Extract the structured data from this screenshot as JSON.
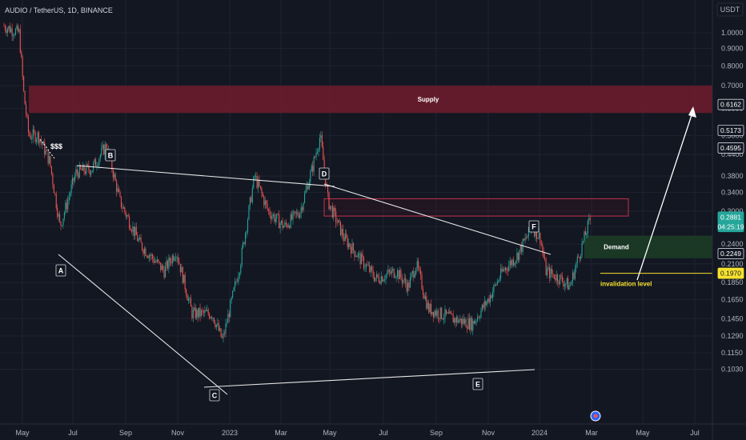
{
  "header": {
    "title": "AUDIO / TetherUS, 1D, BINANCE"
  },
  "currency": "USDT",
  "colors": {
    "background": "#131722",
    "grid": "#1f2330",
    "up": "#26a69a",
    "down": "#ef5350",
    "supply_fill": "#6b1c2b",
    "demand_fill": "#1b3a26",
    "box_stroke": "#c2334b",
    "invalidation": "#f5e12f",
    "price_tag": "#26a69a"
  },
  "chart_data": {
    "type": "candlestick",
    "x_labels": [
      "May",
      "Jul",
      "Sep",
      "Nov",
      "2023",
      "Mar",
      "May",
      "Jul",
      "Sep",
      "Nov",
      "2024",
      "Mar",
      "May",
      "Jul"
    ],
    "y_ticks": [
      "1.0000",
      "0.9000",
      "0.8000",
      "0.7000",
      "0.6000",
      "0.5000",
      "0.4400",
      "0.3800",
      "0.3400",
      "0.3000",
      "0.2700",
      "0.2400",
      "0.2100",
      "0.1850",
      "0.1650",
      "0.1450",
      "0.1290",
      "0.1150",
      "0.1030"
    ],
    "y_scale": "log",
    "grid": true,
    "price_path": [
      [
        "May 2022",
        1.05
      ],
      [
        "early Jun 2022",
        0.6
      ],
      [
        "Jun 2022",
        0.5
      ],
      [
        "late Jun 2022",
        0.27
      ],
      [
        "Jul 2022",
        0.4
      ],
      [
        "Aug 2022",
        0.47
      ],
      [
        "Sep 2022",
        0.3
      ],
      [
        "Oct 2022",
        0.21
      ],
      [
        "Nov 2022",
        0.23
      ],
      [
        "Dec 2022",
        0.125
      ],
      [
        "Jan 2023",
        0.22
      ],
      [
        "Feb 2023",
        0.38
      ],
      [
        "Mar 2023",
        0.27
      ],
      [
        "Apr 2023",
        0.55
      ],
      [
        "May 2023",
        0.3
      ],
      [
        "Jun 2023",
        0.24
      ],
      [
        "Jul 2023",
        0.2
      ],
      [
        "Aug 2023",
        0.17
      ],
      [
        "Sep 2023",
        0.155
      ],
      [
        "Oct 2023",
        0.14
      ],
      [
        "Nov 2023",
        0.19
      ],
      [
        "Dec 2023",
        0.24
      ],
      [
        "Jan 2024",
        0.29
      ],
      [
        "Feb 2024",
        0.19
      ],
      [
        "late Feb 2024",
        0.26
      ],
      [
        "Mar 2024",
        0.2881
      ]
    ],
    "price_tags": [
      {
        "label": "0.6162",
        "value": 0.6162
      },
      {
        "label": "0.5173",
        "value": 0.5173
      },
      {
        "label": "0.4595",
        "value": 0.4595
      },
      {
        "label": "0.2881",
        "value": 0.2881
      },
      {
        "label": "04:25:19",
        "value": 0.27
      },
      {
        "label": "0.2249",
        "value": 0.2249
      },
      {
        "label": "0.1970",
        "value": 0.197
      }
    ],
    "zones": {
      "supply": {
        "label": "Supply",
        "top": 0.7,
        "bottom": 0.582
      },
      "demand": {
        "label": "Demand",
        "top": 0.254,
        "bottom": 0.218
      },
      "resistance_box": {
        "top": 0.326,
        "bottom": 0.29
      },
      "invalidation": {
        "label": "invalidation level",
        "value": 0.197
      }
    },
    "wave_labels": [
      "A",
      "B",
      "C",
      "D",
      "E",
      "F"
    ],
    "annotations": [
      "$$$"
    ]
  }
}
